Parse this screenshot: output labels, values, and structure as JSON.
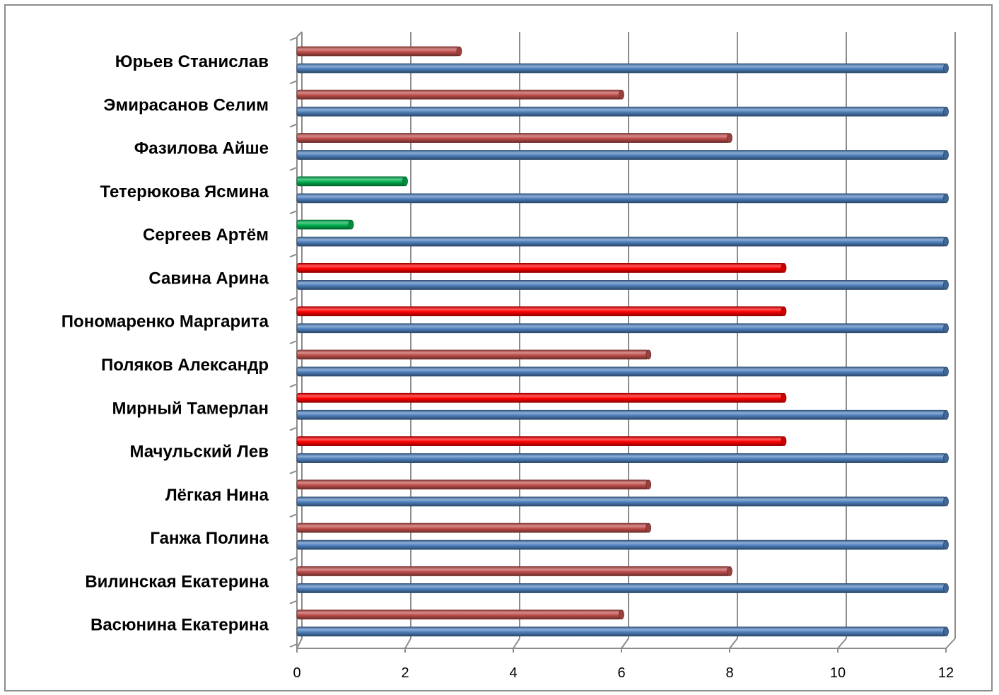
{
  "chart_data": {
    "type": "bar",
    "orientation": "horizontal",
    "style": "3d-cylinder",
    "categories": [
      "Юрьев Станислав",
      "Эмирасанов Селим",
      "Фазилова Айше",
      "Тетерюкова Ясмина",
      "Сергеев Артём",
      "Савина Арина",
      "Пономаренко Маргарита",
      "Поляков Александр",
      "Мирный Тамерлан",
      "Мачульский Лев",
      "Лёгкая Нина",
      "Ганжа Полина",
      "Вилинская Екатерина",
      "Васюнина Екатерина"
    ],
    "series": [
      {
        "values": [
          3,
          6,
          8,
          2,
          1,
          9,
          9,
          6.5,
          9,
          9,
          6.5,
          6.5,
          8,
          6
        ],
        "colors": [
          "#c0504d",
          "#c0504d",
          "#c0504d",
          "#00b050",
          "#00b050",
          "#ff0000",
          "#ff0000",
          "#c0504d",
          "#ff0000",
          "#ff0000",
          "#c0504d",
          "#c0504d",
          "#c0504d",
          "#c0504d"
        ]
      },
      {
        "values": [
          12,
          12,
          12,
          12,
          12,
          12,
          12,
          12,
          12,
          12,
          12,
          12,
          12,
          12
        ],
        "color": "#4f81bd"
      }
    ],
    "xticks": [
      "0",
      "2",
      "4",
      "6",
      "8",
      "10",
      "12"
    ],
    "xlim": [
      0,
      12
    ],
    "grid": true,
    "legend": "none",
    "title": "",
    "xlabel": "",
    "ylabel": ""
  }
}
